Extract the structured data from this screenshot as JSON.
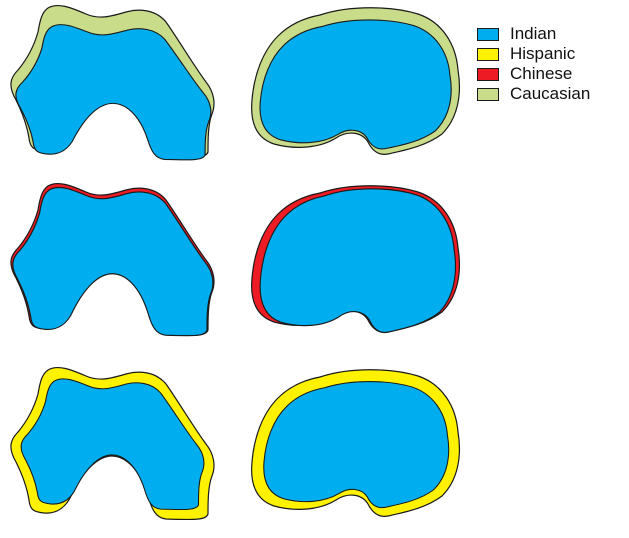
{
  "colors": {
    "indian": "#00aeef",
    "hispanic": "#fff200",
    "chinese": "#ed1c24",
    "caucasian": "#c8dc8a",
    "outline": "#1a1a1a"
  },
  "legend": [
    {
      "label": "Indian",
      "color": "#00aeef"
    },
    {
      "label": "Hispanic",
      "color": "#fff200"
    },
    {
      "label": "Chinese",
      "color": "#ed1c24"
    },
    {
      "label": "Caucasian",
      "color": "#c8dc8a"
    }
  ],
  "comparisons": [
    {
      "name": "Indian vs Caucasian",
      "inner_color": "#00aeef",
      "outer_color": "#c8dc8a"
    },
    {
      "name": "Indian vs Chinese",
      "inner_color": "#00aeef",
      "outer_color": "#ed1c24"
    },
    {
      "name": "Indian vs Hispanic",
      "inner_color": "#00aeef",
      "outer_color": "#fff200"
    }
  ]
}
